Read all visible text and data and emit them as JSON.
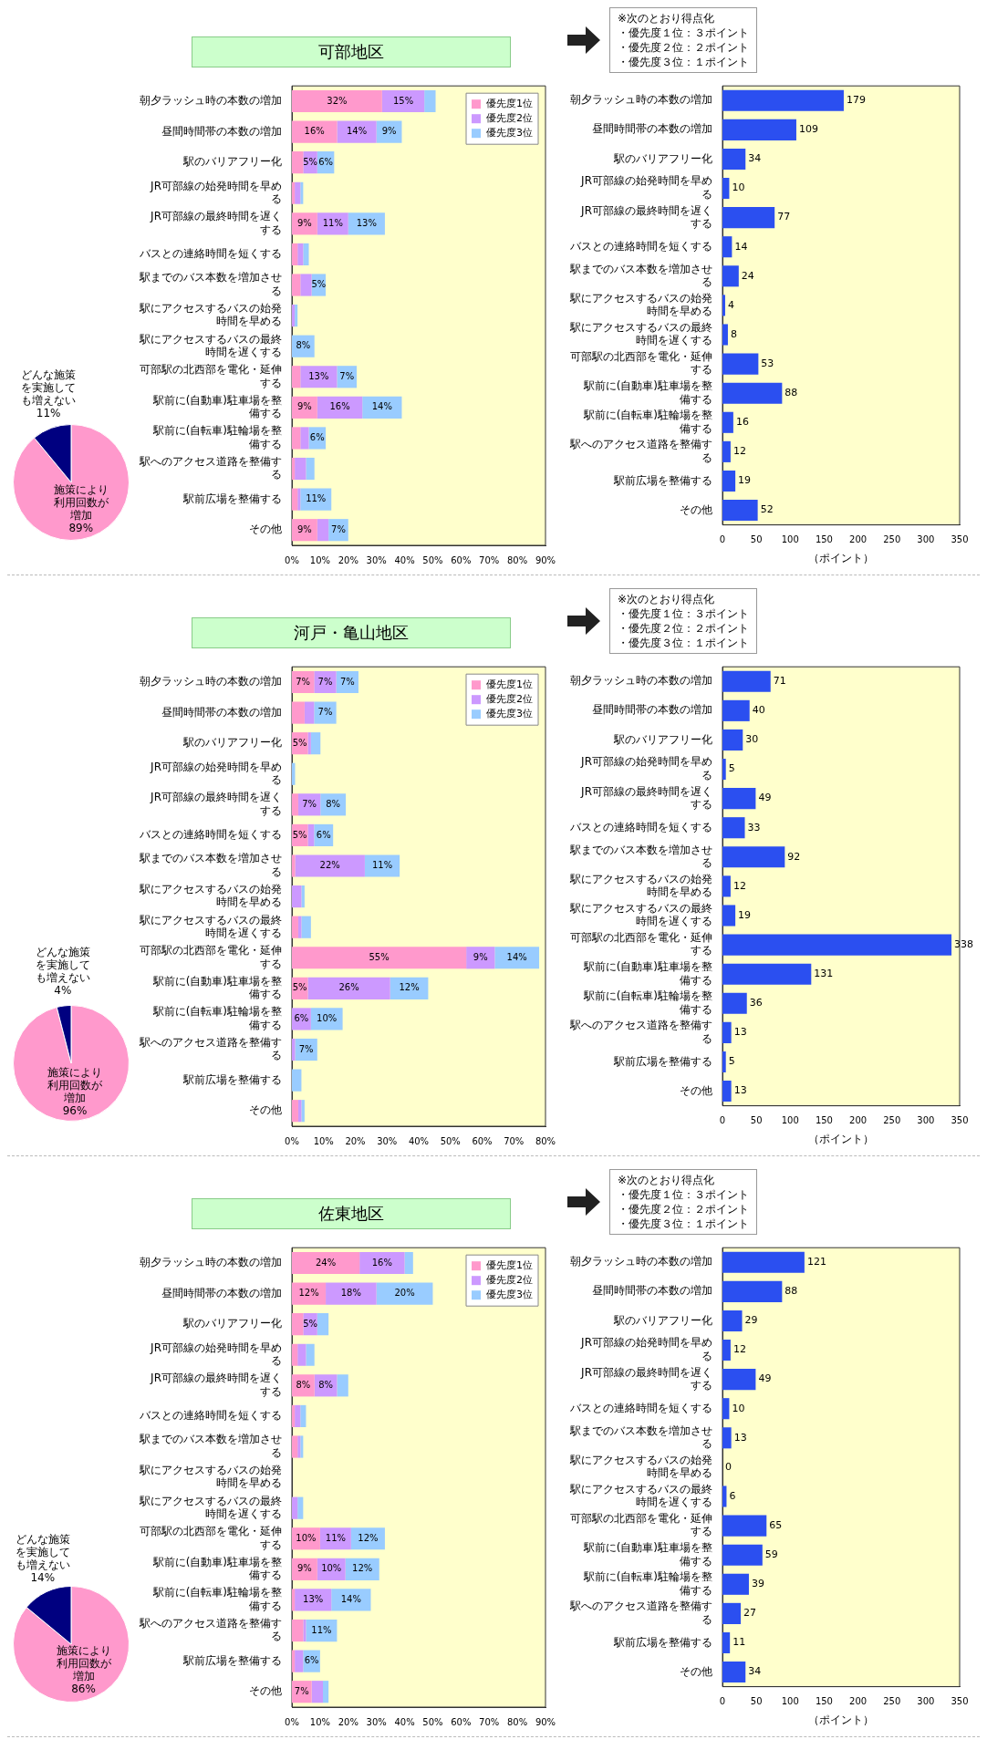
{
  "chart_data": [
    {
      "type": "pie",
      "categories": [
        "施策により利用回数が増加",
        "どんな施策を実施しても増えない"
      ],
      "values": [
        89,
        11
      ],
      "colors": [
        "#ff99cc",
        "#000080"
      ],
      "value_labels": [
        "89%",
        "11%"
      ]
    },
    {
      "type": "bar",
      "title": "可部地区",
      "orientation": "horizontal",
      "stacked": true,
      "legend": "top right",
      "categories": [
        "朝夕ラッシュ時の本数の増加",
        "昼間時間帯の本数の増加",
        "駅のバリアフリー化",
        "JR可部線の始発時間を早める",
        "JR可部線の最終時間を遅くする",
        "バスとの連絡時間を短くする",
        "駅までのバス本数を増加させる",
        "駅にアクセスするバスの始発時間を早める",
        "駅にアクセスするバスの最終時間を遅くする",
        "可部駅の北西部を電化・延伸する",
        "駅前に(自動車)駐車場を整備する",
        "駅前に(自転車)駐輪場を整備する",
        "駅へのアクセス道路を整備する",
        "駅前広場を整備する",
        "その他"
      ],
      "xlim": [
        0,
        90
      ],
      "xticks": [
        {
          "value": 0,
          "label": "0%"
        },
        {
          "value": 10,
          "label": "10%"
        },
        {
          "value": 20,
          "label": "20%"
        },
        {
          "value": 30,
          "label": "30%"
        },
        {
          "value": 40,
          "label": "40%"
        },
        {
          "value": 50,
          "label": "50%"
        },
        {
          "value": 60,
          "label": "60%"
        },
        {
          "value": 70,
          "label": "70%"
        },
        {
          "value": 80,
          "label": "80%"
        },
        {
          "value": 90,
          "label": "90%"
        }
      ],
      "series": [
        {
          "name": "優先度1位",
          "color": "#ff99cc",
          "values": [
            32,
            16,
            4,
            1,
            9,
            2,
            3,
            0,
            0,
            3,
            9,
            3,
            1,
            2,
            9
          ],
          "value_labels": [
            "32%",
            "16%",
            null,
            null,
            "9%",
            null,
            null,
            null,
            null,
            null,
            "9%",
            null,
            null,
            null,
            "9%"
          ]
        },
        {
          "name": "優先度2位",
          "color": "#cc99ff",
          "values": [
            15,
            14,
            5,
            2,
            11,
            2,
            4,
            1,
            0,
            13,
            16,
            3,
            4,
            1,
            4
          ],
          "value_labels": [
            "15%",
            "14%",
            "5%",
            null,
            "11%",
            null,
            null,
            null,
            null,
            "13%",
            "16%",
            null,
            null,
            null,
            null
          ]
        },
        {
          "name": "優先度3位",
          "color": "#99ccff",
          "values": [
            4,
            9,
            6,
            1,
            13,
            2,
            5,
            1,
            8,
            7,
            14,
            6,
            3,
            11,
            7
          ],
          "value_labels": [
            null,
            "9%",
            "6%",
            null,
            "13%",
            null,
            "5%",
            null,
            "8%",
            "7%",
            "14%",
            "6%",
            null,
            "11%",
            "7%"
          ]
        }
      ]
    },
    {
      "type": "bar",
      "orientation": "horizontal",
      "color": "#2b4ff0",
      "data_labels": true,
      "xlabel": "（ポイント）",
      "annotations": [
        "※次のとおり得点化",
        "・優先度１位：３ポイント",
        "・優先度２位：２ポイント",
        "・優先度３位：１ポイント"
      ],
      "categories": [
        "朝夕ラッシュ時の本数の増加",
        "昼間時間帯の本数の増加",
        "駅のバリアフリー化",
        "JR可部線の始発時間を早める",
        "JR可部線の最終時間を遅くする",
        "バスとの連絡時間を短くする",
        "駅までのバス本数を増加させる",
        "駅にアクセスするバスの始発時間を早める",
        "駅にアクセスするバスの最終時間を遅くする",
        "可部駅の北西部を電化・延伸する",
        "駅前に(自動車)駐車場を整備する",
        "駅前に(自転車)駐輪場を整備する",
        "駅へのアクセス道路を整備する",
        "駅前広場を整備する",
        "その他"
      ],
      "xlim": [
        0,
        350
      ],
      "xticks": [
        0,
        50,
        100,
        150,
        200,
        250,
        300,
        350
      ],
      "values": [
        179,
        109,
        34,
        10,
        77,
        14,
        24,
        4,
        8,
        53,
        88,
        16,
        12,
        19,
        52
      ]
    },
    {
      "type": "pie",
      "categories": [
        "施策により利用回数が増加",
        "どんな施策を実施しても増えない"
      ],
      "values": [
        96,
        4
      ],
      "colors": [
        "#ff99cc",
        "#000080"
      ],
      "value_labels": [
        "96%",
        "4%"
      ]
    },
    {
      "type": "bar",
      "title": "河戸・亀山地区",
      "orientation": "horizontal",
      "stacked": true,
      "legend": "top right",
      "categories": [
        "朝夕ラッシュ時の本数の増加",
        "昼間時間帯の本数の増加",
        "駅のバリアフリー化",
        "JR可部線の始発時間を早める",
        "JR可部線の最終時間を遅くする",
        "バスとの連絡時間を短くする",
        "駅までのバス本数を増加させる",
        "駅にアクセスするバスの始発時間を早める",
        "駅にアクセスするバスの最終時間を遅くする",
        "可部駅の北西部を電化・延伸する",
        "駅前に(自動車)駐車場を整備する",
        "駅前に(自転車)駐輪場を整備する",
        "駅へのアクセス道路を整備する",
        "駅前広場を整備する",
        "その他"
      ],
      "xlim": [
        0,
        80
      ],
      "xticks": [
        {
          "value": 0,
          "label": "0%"
        },
        {
          "value": 10,
          "label": "10%"
        },
        {
          "value": 20,
          "label": "20%"
        },
        {
          "value": 30,
          "label": "30%"
        },
        {
          "value": 40,
          "label": "40%"
        },
        {
          "value": 50,
          "label": "50%"
        },
        {
          "value": 60,
          "label": "60%"
        },
        {
          "value": 70,
          "label": "70%"
        },
        {
          "value": 80,
          "label": "80%"
        }
      ],
      "series": [
        {
          "name": "優先度1位",
          "color": "#ff99cc",
          "values": [
            7,
            4,
            5,
            0,
            2,
            5,
            1,
            0,
            2,
            55,
            5,
            0,
            0,
            0,
            2
          ],
          "value_labels": [
            "7%",
            null,
            "5%",
            null,
            null,
            "5%",
            null,
            null,
            null,
            "55%",
            "5%",
            null,
            null,
            null,
            null
          ]
        },
        {
          "name": "優先度2位",
          "color": "#cc99ff",
          "values": [
            7,
            3,
            1,
            0,
            7,
            2,
            22,
            3,
            1,
            9,
            26,
            6,
            1,
            0,
            1
          ],
          "value_labels": [
            "7%",
            null,
            null,
            null,
            "7%",
            null,
            "22%",
            null,
            null,
            "9%",
            "26%",
            "6%",
            null,
            null,
            null
          ]
        },
        {
          "name": "優先度3位",
          "color": "#99ccff",
          "values": [
            7,
            7,
            3,
            1,
            8,
            6,
            11,
            1,
            3,
            14,
            12,
            10,
            7,
            3,
            1
          ],
          "value_labels": [
            "7%",
            "7%",
            null,
            null,
            "8%",
            "6%",
            "11%",
            null,
            null,
            "14%",
            "12%",
            "10%",
            "7%",
            null,
            null
          ]
        }
      ]
    },
    {
      "type": "bar",
      "orientation": "horizontal",
      "color": "#2b4ff0",
      "data_labels": true,
      "xlabel": "（ポイント）",
      "annotations": [
        "※次のとおり得点化",
        "・優先度１位：３ポイント",
        "・優先度２位：２ポイント",
        "・優先度３位：１ポイント"
      ],
      "categories": [
        "朝夕ラッシュ時の本数の増加",
        "昼間時間帯の本数の増加",
        "駅のバリアフリー化",
        "JR可部線の始発時間を早める",
        "JR可部線の最終時間を遅くする",
        "バスとの連絡時間を短くする",
        "駅までのバス本数を増加させる",
        "駅にアクセスするバスの始発時間を早める",
        "駅にアクセスするバスの最終時間を遅くする",
        "可部駅の北西部を電化・延伸する",
        "駅前に(自動車)駐車場を整備する",
        "駅前に(自転車)駐輪場を整備する",
        "駅へのアクセス道路を整備する",
        "駅前広場を整備する",
        "その他"
      ],
      "xlim": [
        0,
        350
      ],
      "xticks": [
        0,
        50,
        100,
        150,
        200,
        250,
        300,
        350
      ],
      "values": [
        71,
        40,
        30,
        5,
        49,
        33,
        92,
        12,
        19,
        338,
        131,
        36,
        13,
        5,
        13
      ]
    },
    {
      "type": "pie",
      "categories": [
        "施策により利用回数が増加",
        "どんな施策を実施しても増えない"
      ],
      "values": [
        86,
        14
      ],
      "colors": [
        "#ff99cc",
        "#000080"
      ],
      "value_labels": [
        "86%",
        "14%"
      ]
    },
    {
      "type": "bar",
      "title": "佐東地区",
      "orientation": "horizontal",
      "stacked": true,
      "legend": "top right",
      "categories": [
        "朝夕ラッシュ時の本数の増加",
        "昼間時間帯の本数の増加",
        "駅のバリアフリー化",
        "JR可部線の始発時間を早める",
        "JR可部線の最終時間を遅くする",
        "バスとの連絡時間を短くする",
        "駅までのバス本数を増加させる",
        "駅にアクセスするバスの始発時間を早める",
        "駅にアクセスするバスの最終時間を遅くする",
        "可部駅の北西部を電化・延伸する",
        "駅前に(自動車)駐車場を整備する",
        "駅前に(自転車)駐輪場を整備する",
        "駅へのアクセス道路を整備する",
        "駅前広場を整備する",
        "その他"
      ],
      "xlim": [
        0,
        90
      ],
      "xticks": [
        {
          "value": 0,
          "label": "0%"
        },
        {
          "value": 10,
          "label": "10%"
        },
        {
          "value": 20,
          "label": "20%"
        },
        {
          "value": 30,
          "label": "30%"
        },
        {
          "value": 40,
          "label": "40%"
        },
        {
          "value": 50,
          "label": "50%"
        },
        {
          "value": 60,
          "label": "60%"
        },
        {
          "value": 70,
          "label": "70%"
        },
        {
          "value": 80,
          "label": "80%"
        },
        {
          "value": 90,
          "label": "90%"
        }
      ],
      "series": [
        {
          "name": "優先度1位",
          "color": "#ff99cc",
          "values": [
            24,
            12,
            4,
            2,
            8,
            1,
            2,
            0,
            0,
            10,
            9,
            1,
            4,
            1,
            7
          ],
          "value_labels": [
            "24%",
            "12%",
            null,
            null,
            "8%",
            null,
            null,
            null,
            null,
            "10%",
            "9%",
            null,
            null,
            null,
            "7%"
          ]
        },
        {
          "name": "優先度2位",
          "color": "#cc99ff",
          "values": [
            16,
            18,
            5,
            3,
            8,
            2,
            1,
            0,
            2,
            11,
            10,
            13,
            1,
            3,
            4
          ],
          "value_labels": [
            "16%",
            "18%",
            "5%",
            null,
            "8%",
            null,
            null,
            null,
            null,
            "11%",
            "10%",
            "13%",
            null,
            null,
            null
          ]
        },
        {
          "name": "優先度3位",
          "color": "#99ccff",
          "values": [
            3,
            20,
            4,
            3,
            4,
            2,
            1,
            0,
            2,
            12,
            12,
            14,
            11,
            6,
            2
          ],
          "value_labels": [
            null,
            "20%",
            null,
            null,
            null,
            null,
            null,
            null,
            null,
            "12%",
            "12%",
            "14%",
            "11%",
            "6%",
            null
          ]
        }
      ]
    },
    {
      "type": "bar",
      "orientation": "horizontal",
      "color": "#2b4ff0",
      "data_labels": true,
      "xlabel": "（ポイント）",
      "annotations": [
        "※次のとおり得点化",
        "・優先度１位：３ポイント",
        "・優先度２位：２ポイント",
        "・優先度３位：１ポイント"
      ],
      "categories": [
        "朝夕ラッシュ時の本数の増加",
        "昼間時間帯の本数の増加",
        "駅のバリアフリー化",
        "JR可部線の始発時間を早める",
        "JR可部線の最終時間を遅くする",
        "バスとの連絡時間を短くする",
        "駅までのバス本数を増加させる",
        "駅にアクセスするバスの始発時間を早める",
        "駅にアクセスするバスの最終時間を遅くする",
        "可部駅の北西部を電化・延伸する",
        "駅前に(自動車)駐車場を整備する",
        "駅前に(自転車)駐輪場を整備する",
        "駅へのアクセス道路を整備する",
        "駅前広場を整備する",
        "その他"
      ],
      "xlim": [
        0,
        350
      ],
      "xticks": [
        0,
        50,
        100,
        150,
        200,
        250,
        300,
        350
      ],
      "values": [
        121,
        88,
        29,
        12,
        49,
        10,
        13,
        0,
        6,
        65,
        59,
        39,
        27,
        11,
        34
      ]
    }
  ]
}
